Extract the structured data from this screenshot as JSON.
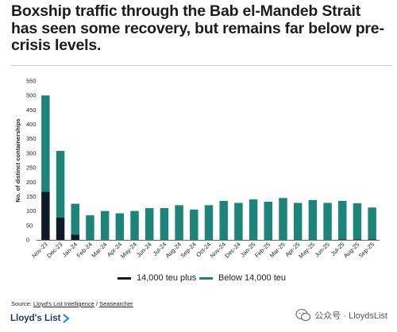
{
  "title": "Boxship traffic through the Bab el-Mandeb Strait has seen some recovery, but remains far below pre-crisis levels.",
  "source": {
    "prefix": "Source: ",
    "link1": "Lloyd's List Intelligence",
    "sep": " / ",
    "link2": "Seasearcher"
  },
  "brand": "Lloyd's List",
  "watermark": "公众号 · LloydsList",
  "colors": {
    "large": "#0d1a28",
    "small": "#1c8478",
    "text": "#1c1c1c"
  },
  "chart_data": {
    "type": "bar",
    "stacked": true,
    "ylabel": "No. of distinct containerships",
    "ylim": [
      0,
      550
    ],
    "yticks": [
      0,
      50,
      100,
      150,
      200,
      250,
      300,
      350,
      400,
      450,
      500,
      550
    ],
    "categories": [
      "Nov-23",
      "Dec-23",
      "Jan-24",
      "Feb-24",
      "Mar-24",
      "Apr-24",
      "May-24",
      "Jun-24",
      "Jul-24",
      "Aug-24",
      "Sep-24",
      "Oct-24",
      "Nov-24",
      "Dec-24",
      "Jan-25",
      "Feb-25",
      "Mar-25",
      "Apr-25",
      "May-25",
      "Jun-25",
      "Jul-25",
      "Aug-25",
      "Sep-25"
    ],
    "series": [
      {
        "name": "14,000 teu plus",
        "color": "#0d1a28",
        "values": [
          167,
          77,
          18,
          0,
          0,
          0,
          0,
          0,
          0,
          0,
          0,
          0,
          0,
          0,
          0,
          0,
          0,
          0,
          0,
          0,
          2,
          2,
          2
        ]
      },
      {
        "name": "Below 14,000 teu",
        "color": "#1c8478",
        "values": [
          333,
          231,
          107,
          85,
          100,
          92,
          100,
          110,
          110,
          120,
          105,
          120,
          135,
          128,
          140,
          132,
          145,
          128,
          138,
          128,
          133,
          125,
          110
        ]
      }
    ],
    "legend_position": "bottom",
    "grid": false
  }
}
